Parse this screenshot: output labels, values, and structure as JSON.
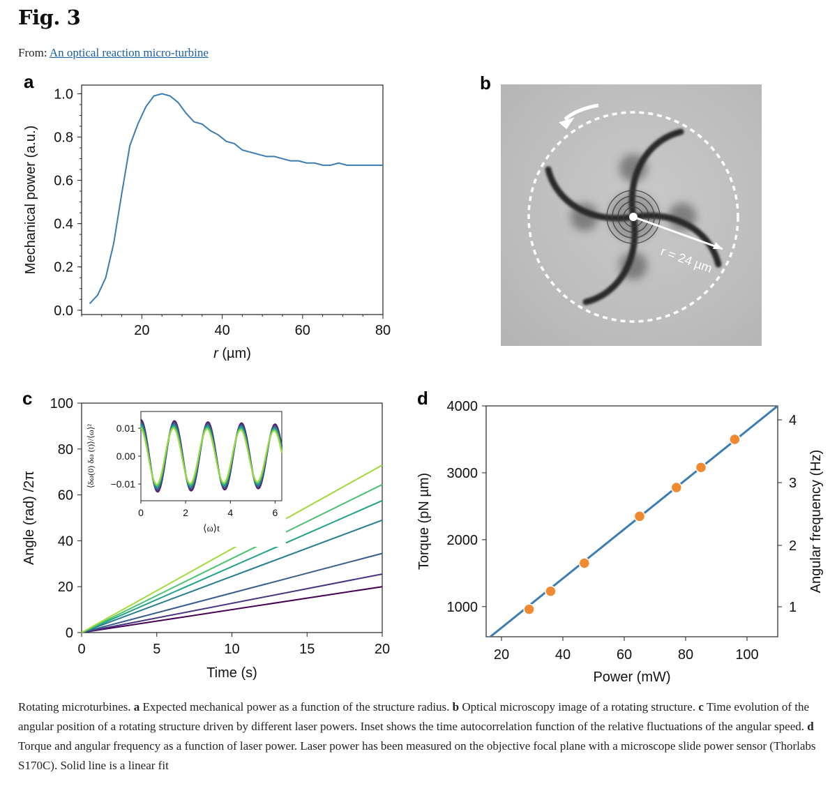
{
  "header": {
    "fig_title": "Fig. 3",
    "from_prefix": "From: ",
    "from_link": "An optical reaction micro-turbine"
  },
  "panels": {
    "a_label": "a",
    "b_label": "b",
    "c_label": "c",
    "d_label": "d"
  },
  "panel_b": {
    "radius_label": "r = 24 µm"
  },
  "colors": {
    "line_blue": "#3b7db3",
    "point_orange": "#f08a30",
    "viridis": [
      "#440154",
      "#46327e",
      "#365c8d",
      "#277f8e",
      "#1fa187",
      "#4ac16d",
      "#a0da39"
    ]
  },
  "chart_data": [
    {
      "id": "a",
      "type": "line",
      "xlabel_italic": "r",
      "xlabel_unit": " (µm)",
      "ylabel": "Mechanical power (a.u.)",
      "xlim": [
        5,
        80
      ],
      "ylim": [
        -0.02,
        1.04
      ],
      "xticks": [
        20,
        40,
        60,
        80
      ],
      "yticks": [
        "0.0",
        "0.2",
        "0.4",
        "0.6",
        "0.8",
        "1.0"
      ],
      "x": [
        7,
        9,
        11,
        13,
        15,
        17,
        19,
        21,
        23,
        25,
        27,
        29,
        31,
        33,
        35,
        37,
        39,
        41,
        43,
        45,
        47,
        49,
        51,
        53,
        55,
        57,
        59,
        61,
        63,
        65,
        67,
        69,
        71,
        73,
        75,
        77,
        79,
        80
      ],
      "y": [
        0.03,
        0.07,
        0.15,
        0.31,
        0.54,
        0.76,
        0.86,
        0.94,
        0.99,
        1.0,
        0.99,
        0.96,
        0.91,
        0.87,
        0.86,
        0.83,
        0.81,
        0.78,
        0.77,
        0.74,
        0.73,
        0.72,
        0.71,
        0.71,
        0.7,
        0.69,
        0.69,
        0.68,
        0.68,
        0.67,
        0.67,
        0.68,
        0.67,
        0.67,
        0.67,
        0.67,
        0.67,
        0.67
      ]
    },
    {
      "id": "c",
      "type": "line",
      "xlabel": "Time (s)",
      "ylabel": "Angle (rad) /2π",
      "xlim": [
        0,
        20
      ],
      "ylim": [
        0,
        100
      ],
      "xticks": [
        0,
        5,
        10,
        15,
        20
      ],
      "yticks": [
        0,
        20,
        40,
        60,
        80,
        100
      ],
      "series_end_values": [
        20,
        25.5,
        34.5,
        49,
        57.5,
        64.5,
        73
      ]
    },
    {
      "id": "c_inset",
      "type": "line",
      "xlabel": "⟨ω⟩t",
      "ylabel": "⟨δω(0) δω (t)⟩/⟨ω⟩²",
      "xlim": [
        0,
        6.3
      ],
      "ylim": [
        -0.016,
        0.016
      ],
      "xticks": [
        0,
        2,
        4,
        6
      ],
      "yticks": [
        "0.01",
        "0.00",
        "−0.01"
      ],
      "amplitude": 0.013,
      "period": 1.5
    },
    {
      "id": "d",
      "type": "scatter",
      "xlabel": "Power (mW)",
      "ylabel_left": "Torque (pN µm)",
      "ylabel_right": "Angular frequency (Hz)",
      "xlim": [
        15,
        110
      ],
      "ylim": [
        550,
        4000
      ],
      "xticks": [
        20,
        40,
        60,
        80,
        100
      ],
      "yticks": [
        1000,
        2000,
        3000,
        4000
      ],
      "right_ticks": [
        "1",
        "2",
        "3",
        "4"
      ],
      "x": [
        29,
        36,
        47,
        65,
        77,
        85,
        96
      ],
      "y": [
        960,
        1230,
        1650,
        2350,
        2780,
        3080,
        3500
      ],
      "fit_line": [
        [
          15,
          500
        ],
        [
          110,
          4000
        ]
      ]
    }
  ],
  "caption": {
    "intro": "Rotating microturbines. ",
    "a_letter": "a",
    "a_text": " Expected mechanical power as a function of the structure radius. ",
    "b_letter": "b",
    "b_text": " Optical microscopy image of a rotating structure. ",
    "c_letter": "c",
    "c_text": " Time evolution of the angular position of a rotating structure driven by different laser powers. Inset shows the time autocorrelation function of the relative fluctuations of the angular speed. ",
    "d_letter": "d",
    "d_text": " Torque and angular frequency as a function of laser power. Laser power has been measured on the objective focal plane with a microscope slide power sensor (Thorlabs S170C). Solid line is a linear fit"
  }
}
